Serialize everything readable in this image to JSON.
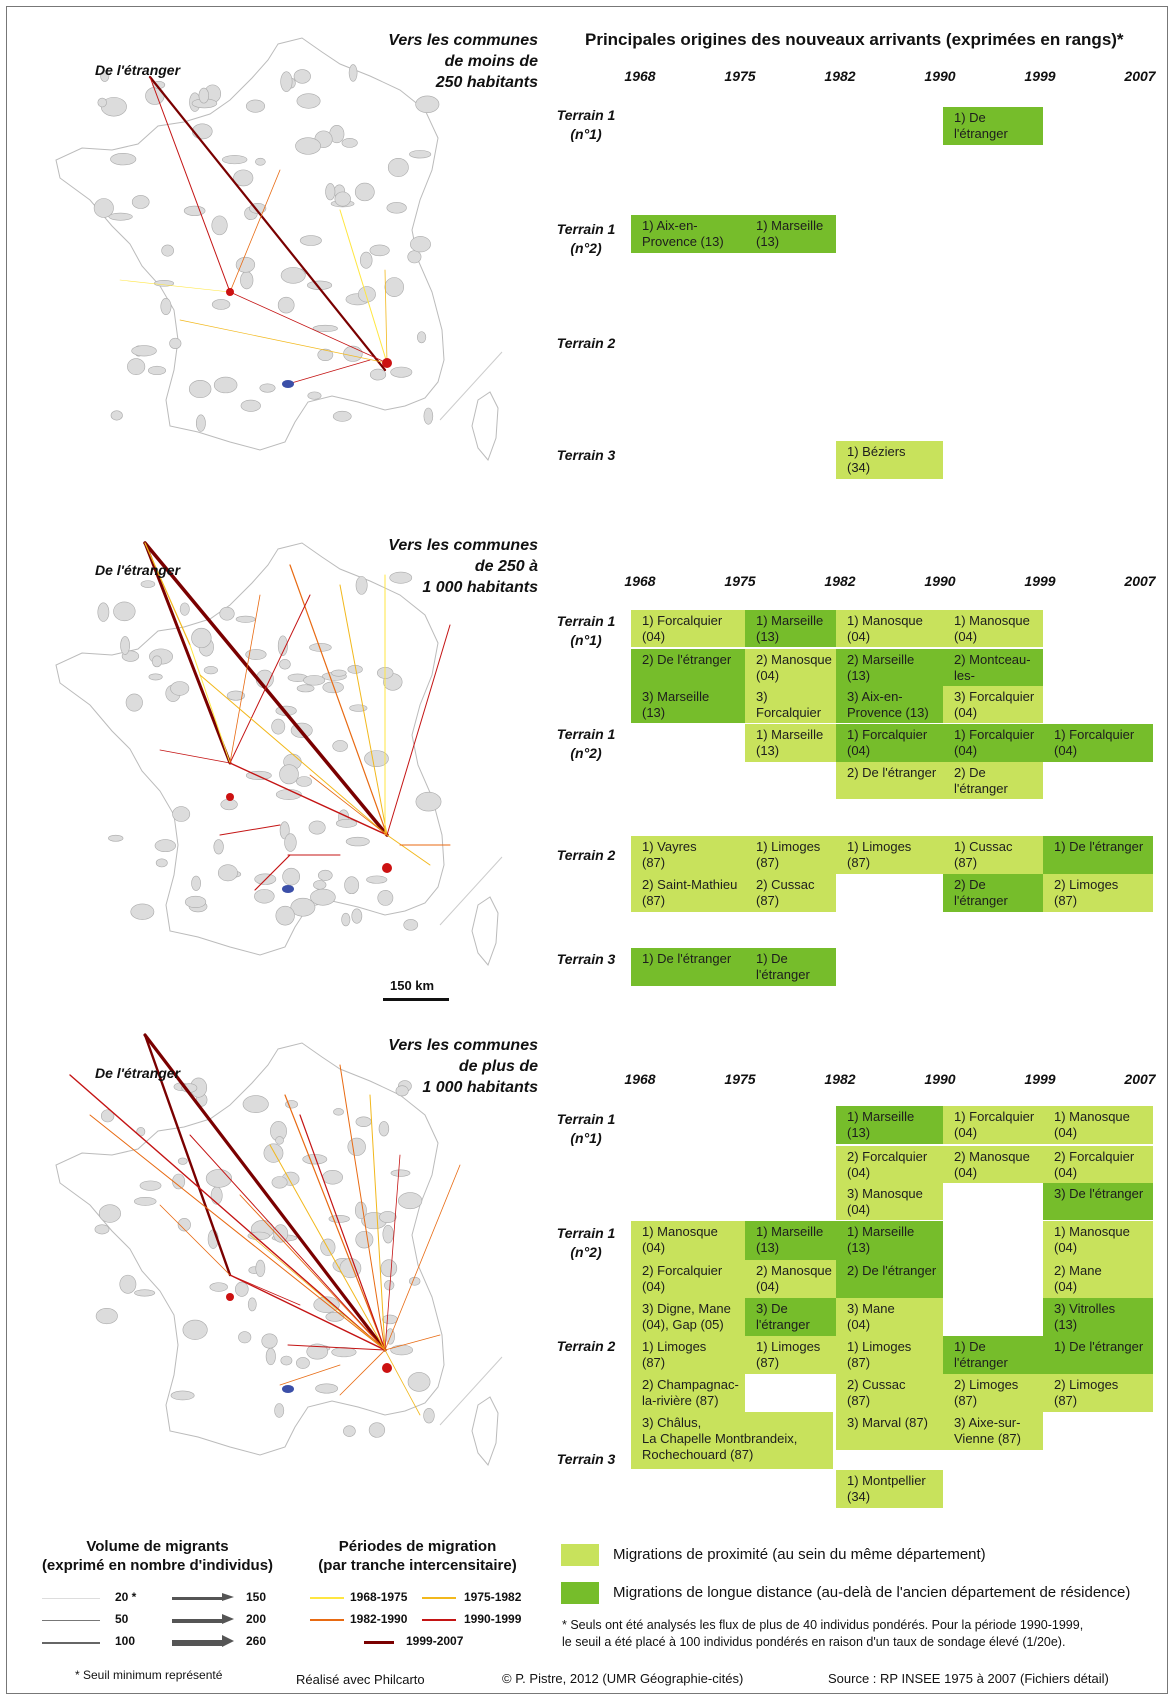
{
  "header": {
    "title": "Principales origines des nouveaux arrivants (exprimées en rangs)*"
  },
  "years": [
    "1968",
    "1975",
    "1982",
    "1990",
    "1999",
    "2007"
  ],
  "colors": {
    "proximite": "#c8e25c",
    "longue": "#76bd2b",
    "commune": "#dcdcdc",
    "origin_marker": "#cc1111",
    "blue_marker": "#3b4fa8"
  },
  "maps": [
    {
      "title_lines": [
        "Vers les communes",
        "de moins de",
        "250 habitants"
      ],
      "foreign_label": "De l'étranger"
    },
    {
      "title_lines": [
        "Vers les communes",
        "de 250 à",
        "1 000 habitants"
      ],
      "foreign_label": "De l'étranger",
      "scale_label": "150 km"
    },
    {
      "title_lines": [
        "Vers les communes",
        "de plus de",
        "1 000 habitants"
      ],
      "foreign_label": "De l'étranger"
    }
  ],
  "tables": [
    {
      "rows": [
        {
          "label": [
            "Terrain 1",
            "(n°1)"
          ]
        },
        {
          "label": [
            "Terrain 1",
            "(n°2)"
          ]
        },
        {
          "label": [
            "Terrain 2"
          ]
        },
        {
          "label": [
            "Terrain 3"
          ]
        }
      ],
      "cells": [
        {
          "text": "1) De l'étranger",
          "type": "longue"
        },
        {
          "text": "1) Aix-en-\nProvence (13)",
          "type": "longue"
        },
        {
          "text": "1) Marseille\n(13)",
          "type": "longue"
        },
        {
          "text": "1) Béziers\n(34)",
          "type": "proximite"
        }
      ]
    },
    {
      "rows": [
        {
          "label": [
            "Terrain 1",
            "(n°1)"
          ]
        },
        {
          "label": [
            "Terrain 1",
            "(n°2)"
          ]
        },
        {
          "label": [
            "Terrain 2"
          ]
        },
        {
          "label": [
            "Terrain 3"
          ]
        }
      ],
      "cells": [
        {
          "text": "1) Forcalquier\n(04)",
          "type": "proximite"
        },
        {
          "text": "1) Marseille\n(13)",
          "type": "longue"
        },
        {
          "text": "1) Manosque\n(04)",
          "type": "proximite"
        },
        {
          "text": "1) Manosque\n(04)",
          "type": "proximite"
        },
        {
          "text": "2) De l'étranger",
          "type": "longue"
        },
        {
          "text": "2) Manosque\n(04)",
          "type": "proximite"
        },
        {
          "text": "2) Marseille\n(13)",
          "type": "longue"
        },
        {
          "text": "2) Montceau-les-\nMines (71)",
          "type": "longue"
        },
        {
          "text": "3) Marseille\n(13)",
          "type": "longue"
        },
        {
          "text": "3) Forcalquier\n(04)",
          "type": "proximite"
        },
        {
          "text": "3) Aix-en-\nProvence (13)",
          "type": "longue"
        },
        {
          "text": "3) Forcalquier\n(04)",
          "type": "proximite"
        },
        {
          "text": "1) Marseille\n(13)",
          "type": "proximite"
        },
        {
          "text": "1) Forcalquier\n(04)",
          "type": "longue"
        },
        {
          "text": "1) Forcalquier\n(04)",
          "type": "longue"
        },
        {
          "text": "1) Forcalquier\n(04)",
          "type": "longue"
        },
        {
          "text": "2) De l'étranger",
          "type": "proximite"
        },
        {
          "text": "2) De l'étranger",
          "type": "proximite"
        },
        {
          "text": "1) Vayres\n(87)",
          "type": "proximite"
        },
        {
          "text": "1) Limoges\n(87)",
          "type": "proximite"
        },
        {
          "text": "1) Limoges\n(87)",
          "type": "proximite"
        },
        {
          "text": "1) Cussac\n(87)",
          "type": "proximite"
        },
        {
          "text": "1) De l'étranger",
          "type": "longue"
        },
        {
          "text": "2) Saint-Mathieu\n(87)",
          "type": "proximite"
        },
        {
          "text": "2) Cussac\n(87)",
          "type": "proximite"
        },
        {
          "text": "2) De l'étranger",
          "type": "longue"
        },
        {
          "text": "2) Limoges\n(87)",
          "type": "proximite"
        },
        {
          "text": "1) De l'étranger",
          "type": "longue"
        },
        {
          "text": "1) De l'étranger",
          "type": "longue"
        }
      ]
    },
    {
      "rows": [
        {
          "label": [
            "Terrain 1",
            "(n°1)"
          ]
        },
        {
          "label": [
            "Terrain 1",
            "(n°2)"
          ]
        },
        {
          "label": [
            "Terrain 2"
          ]
        },
        {
          "label": [
            "Terrain 3"
          ]
        }
      ],
      "cells": [
        {
          "text": "1) Marseille\n(13)",
          "type": "longue"
        },
        {
          "text": "1) Forcalquier\n(04)",
          "type": "proximite"
        },
        {
          "text": "1) Manosque\n(04)",
          "type": "proximite"
        },
        {
          "text": "2) Forcalquier\n(04)",
          "type": "proximite"
        },
        {
          "text": "2) Manosque\n(04)",
          "type": "proximite"
        },
        {
          "text": "2) Forcalquier\n(04)",
          "type": "proximite"
        },
        {
          "text": "3) Manosque\n(04)",
          "type": "proximite"
        },
        {
          "text": "3) De l'étranger",
          "type": "longue"
        },
        {
          "text": "1) Manosque\n(04)",
          "type": "proximite"
        },
        {
          "text": "1) Marseille\n(13)",
          "type": "longue"
        },
        {
          "text": "1) Marseille\n(13)",
          "type": "longue"
        },
        {
          "text": "1) Manosque\n(04)",
          "type": "proximite"
        },
        {
          "text": "2) Forcalquier\n(04)",
          "type": "proximite"
        },
        {
          "text": "2) Manosque\n(04)",
          "type": "proximite"
        },
        {
          "text": "2) De l'étranger",
          "type": "longue"
        },
        {
          "text": "2) Mane\n(04)",
          "type": "proximite"
        },
        {
          "text": "3) Digne, Mane\n(04), Gap (05)",
          "type": "proximite"
        },
        {
          "text": "3) De l'étranger",
          "type": "longue"
        },
        {
          "text": "3) Mane\n(04)",
          "type": "proximite"
        },
        {
          "text": "3) Vitrolles\n(13)",
          "type": "longue"
        },
        {
          "text": "1) Limoges\n(87)",
          "type": "proximite"
        },
        {
          "text": "1) Limoges\n(87)",
          "type": "proximite"
        },
        {
          "text": "1) Limoges\n(87)",
          "type": "proximite"
        },
        {
          "text": "1) De l'étranger",
          "type": "longue"
        },
        {
          "text": "1) De l'étranger",
          "type": "longue"
        },
        {
          "text": "2) Champagnac-\nla-rivière (87)",
          "type": "proximite"
        },
        {
          "text": "2) Cussac\n(87)",
          "type": "proximite"
        },
        {
          "text": "2) Limoges\n(87)",
          "type": "proximite"
        },
        {
          "text": "2) Limoges\n(87)",
          "type": "proximite"
        },
        {
          "text": "3) Châlus,\nLa Chapelle Montbrandeix,\nRochechouard (87)",
          "type": "proximite"
        },
        {
          "text": "3) Marval (87)",
          "type": "proximite"
        },
        {
          "text": "3) Aixe-sur-\nVienne (87)",
          "type": "proximite"
        },
        {
          "text": "1) Montpellier\n(34)",
          "type": "proximite"
        }
      ]
    }
  ],
  "legend": {
    "volume_title": [
      "Volume de migrants",
      "(exprimé en nombre d'individus)"
    ],
    "volume_values": [
      "20 *",
      "50",
      "100",
      "150",
      "200",
      "260"
    ],
    "periods_title": [
      "Périodes de migration",
      "(par tranche intercensitaire)"
    ],
    "periods": [
      {
        "label": "1968-1975",
        "color": "#ffe640"
      },
      {
        "label": "1975-1982",
        "color": "#f2b81c"
      },
      {
        "label": "1982-1990",
        "color": "#e86a12"
      },
      {
        "label": "1990-1999",
        "color": "#c41414"
      },
      {
        "label": "1999-2007",
        "color": "#7a0000"
      }
    ],
    "proximite_label": "Migrations de proximité (au sein du même département)",
    "longue_label": "Migrations de longue distance (au-delà de l'ancien département de résidence)",
    "threshold_note": "* Seuil minimum représenté",
    "note_lines": [
      "* Seuls ont été analysés les flux de plus de 40 individus pondérés. Pour la période 1990-1999,",
      "le seuil a été placé à 100 individus pondérés en raison d'un taux de sondage élevé (1/20e)."
    ]
  },
  "footer": {
    "software": "Réalisé avec Philcarto",
    "author": "© P. Pistre, 2012 (UMR Géographie-cités)",
    "source": "Source : RP INSEE 1975 à 2007 (Fichiers détail)"
  }
}
